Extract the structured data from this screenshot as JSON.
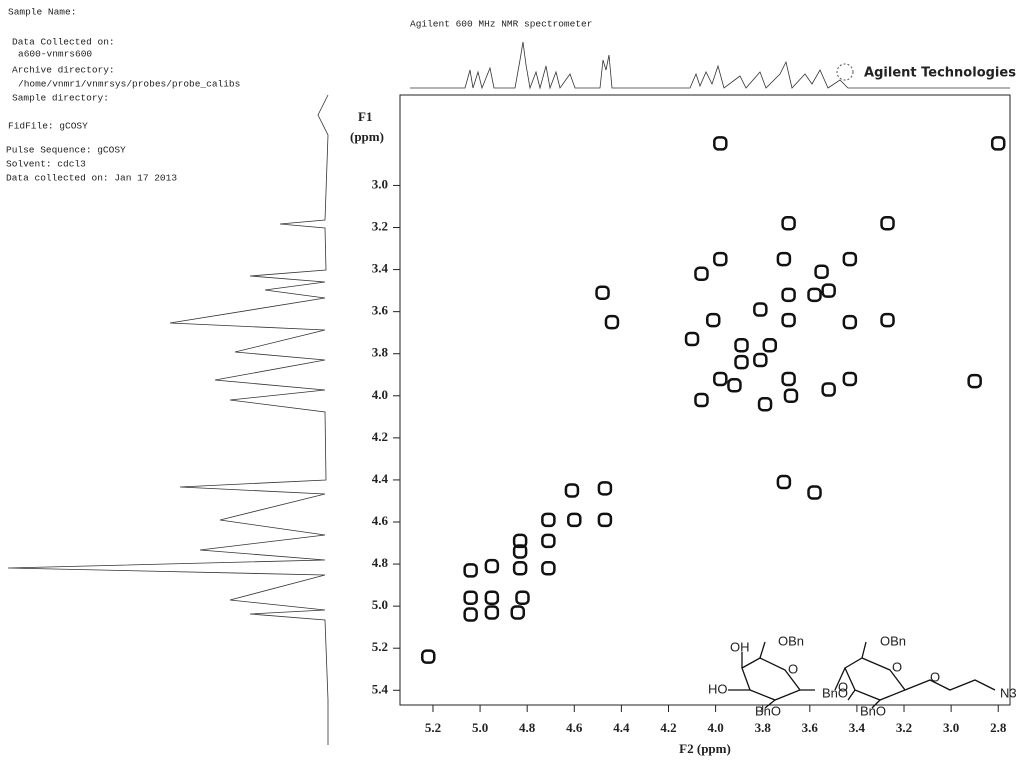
{
  "header": {
    "lines": [
      "Sample Name:",
      "Data Collected on:",
      "a600-vnmrs600",
      "Archive directory:",
      "/home/vnmr1/vnmrsys/probes/probe_calibs",
      "Sample directory:",
      "FidFile: gCOSY",
      "Pulse Sequence: gCOSY",
      "Solvent: cdcl3",
      "Data collected on: Jan 17 2013"
    ],
    "instrument": "Agilent 600 MHz NMR spectrometer",
    "brand": "Agilent Technologies"
  },
  "chart_data": {
    "type": "scatter",
    "x_label": "F2 (ppm)",
    "y_label": [
      "F1",
      "(ppm)"
    ],
    "xlim": [
      5.34,
      2.75
    ],
    "ylim": [
      2.57,
      5.47
    ],
    "xticks": [
      5.2,
      {
        "value": 5.0,
        "label": "5.0"
      },
      4.8,
      4.6,
      4.4,
      4.2,
      {
        "value": 4.0,
        "label": "4.0"
      },
      3.8,
      3.6,
      3.4,
      3.2,
      {
        "value": 3.0,
        "label": "3.0"
      },
      2.8
    ],
    "yticks": [
      {
        "value": 3.0,
        "label": "3.0"
      },
      3.2,
      3.4,
      3.6,
      3.8,
      {
        "value": 4.0,
        "label": "4.0"
      },
      4.2,
      4.4,
      4.6,
      4.8,
      {
        "value": 5.0,
        "label": "5.0"
      },
      5.2,
      5.4
    ],
    "color": "#111111",
    "x": [
      2.8,
      3.27,
      3.69,
      3.98,
      3.43,
      3.55,
      3.98,
      3.71,
      4.06,
      4.48,
      4.44,
      3.69,
      3.81,
      3.58,
      3.52,
      3.69,
      3.43,
      3.27,
      4.1,
      4.01,
      3.89,
      3.77,
      3.89,
      3.81,
      3.98,
      3.69,
      3.43,
      3.52,
      3.68,
      3.79,
      4.06,
      3.92,
      2.9,
      3.71,
      3.58,
      4.61,
      4.47,
      4.47,
      4.6,
      4.71,
      4.71,
      4.83,
      4.83,
      4.71,
      4.83,
      4.95,
      5.04,
      4.82,
      4.95,
      5.04,
      5.04,
      4.95,
      4.84,
      5.22
    ],
    "y": [
      2.8,
      3.18,
      3.18,
      2.8,
      3.35,
      3.41,
      3.35,
      3.35,
      3.42,
      3.51,
      3.65,
      3.52,
      3.59,
      3.52,
      3.5,
      3.64,
      3.65,
      3.64,
      3.73,
      3.64,
      3.76,
      3.76,
      3.84,
      3.83,
      3.92,
      3.92,
      3.92,
      3.97,
      4.0,
      4.04,
      4.02,
      3.95,
      3.93,
      4.41,
      4.46,
      4.45,
      4.44,
      4.59,
      4.59,
      4.59,
      4.69,
      4.69,
      4.74,
      4.82,
      4.82,
      4.81,
      4.83,
      4.96,
      4.96,
      4.96,
      5.04,
      5.03,
      5.03,
      5.24
    ]
  },
  "structure": {
    "labels": [
      "OH",
      "OBn",
      "HO",
      "BnO",
      "BnO",
      "BnO",
      "OBn",
      "O",
      "O",
      "O",
      "O",
      "N3"
    ]
  }
}
